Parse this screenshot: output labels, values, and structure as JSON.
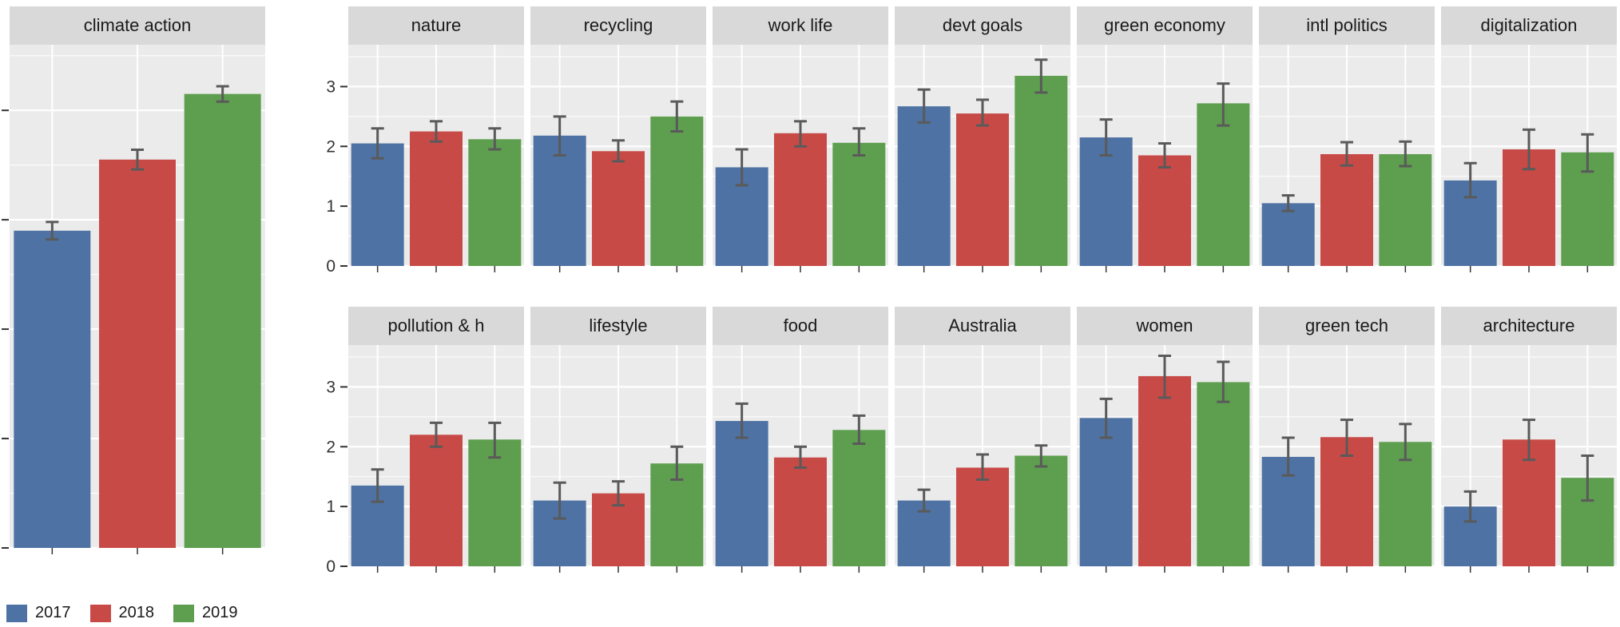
{
  "colors": {
    "2017": "#4e72a3",
    "2018": "#c84a47",
    "2019": "#5e9e4f",
    "panel_bg": "#ebebeb",
    "strip_bg": "#d9d9d9",
    "grid": "#ffffff",
    "error_bar": "#5a5a5a"
  },
  "legend": {
    "items": [
      "2017",
      "2018",
      "2019"
    ]
  },
  "chart_data": [
    {
      "type": "bar",
      "title": "climate action",
      "categories": [
        "2017",
        "2018",
        "2019"
      ],
      "values": [
        2.9,
        3.55,
        4.15
      ],
      "errors": [
        [
          2.82,
          2.98
        ],
        [
          3.46,
          3.64
        ],
        [
          4.08,
          4.22
        ]
      ],
      "ylim": [
        0,
        4.6
      ]
    },
    {
      "type": "bar",
      "grid": true,
      "y_ticks": [
        "0",
        "1",
        "2",
        "3"
      ],
      "ylim": [
        0,
        3.7
      ],
      "series_names": [
        "2017",
        "2018",
        "2019"
      ],
      "panels": [
        {
          "title": "nature",
          "values": [
            2.05,
            2.25,
            2.12
          ],
          "errors": [
            [
              1.8,
              2.3
            ],
            [
              2.08,
              2.42
            ],
            [
              1.95,
              2.3
            ]
          ]
        },
        {
          "title": "recycling",
          "values": [
            2.18,
            1.92,
            2.5
          ],
          "errors": [
            [
              1.85,
              2.5
            ],
            [
              1.75,
              2.1
            ],
            [
              2.25,
              2.75
            ]
          ]
        },
        {
          "title": "work life",
          "values": [
            1.65,
            2.22,
            2.06
          ],
          "errors": [
            [
              1.35,
              1.95
            ],
            [
              2.0,
              2.42
            ],
            [
              1.85,
              2.3
            ]
          ]
        },
        {
          "title": "devt goals",
          "values": [
            2.67,
            2.55,
            3.18
          ],
          "errors": [
            [
              2.4,
              2.95
            ],
            [
              2.35,
              2.78
            ],
            [
              2.9,
              3.45
            ]
          ]
        },
        {
          "title": "green economy",
          "values": [
            2.15,
            1.85,
            2.72
          ],
          "errors": [
            [
              1.85,
              2.45
            ],
            [
              1.65,
              2.05
            ],
            [
              2.35,
              3.05
            ]
          ]
        },
        {
          "title": "intl politics",
          "values": [
            1.05,
            1.87,
            1.87
          ],
          "errors": [
            [
              0.92,
              1.18
            ],
            [
              1.68,
              2.07
            ],
            [
              1.67,
              2.08
            ]
          ]
        },
        {
          "title": "digitalization",
          "values": [
            1.43,
            1.95,
            1.9
          ],
          "errors": [
            [
              1.15,
              1.72
            ],
            [
              1.62,
              2.28
            ],
            [
              1.58,
              2.2
            ]
          ]
        },
        {
          "title": "pollution & h",
          "values": [
            1.35,
            2.2,
            2.12
          ],
          "errors": [
            [
              1.08,
              1.62
            ],
            [
              2.0,
              2.4
            ],
            [
              1.82,
              2.4
            ]
          ]
        },
        {
          "title": "lifestyle",
          "values": [
            1.1,
            1.22,
            1.72
          ],
          "errors": [
            [
              0.8,
              1.4
            ],
            [
              1.02,
              1.42
            ],
            [
              1.45,
              2.0
            ]
          ]
        },
        {
          "title": "food",
          "values": [
            2.43,
            1.82,
            2.28
          ],
          "errors": [
            [
              2.15,
              2.72
            ],
            [
              1.65,
              2.0
            ],
            [
              2.05,
              2.52
            ]
          ]
        },
        {
          "title": "Australia",
          "values": [
            1.1,
            1.65,
            1.85
          ],
          "errors": [
            [
              0.92,
              1.28
            ],
            [
              1.45,
              1.87
            ],
            [
              1.67,
              2.02
            ]
          ]
        },
        {
          "title": "women",
          "values": [
            2.48,
            3.18,
            3.08
          ],
          "errors": [
            [
              2.15,
              2.8
            ],
            [
              2.82,
              3.52
            ],
            [
              2.75,
              3.42
            ]
          ]
        },
        {
          "title": "green tech",
          "values": [
            1.83,
            2.16,
            2.08
          ],
          "errors": [
            [
              1.52,
              2.15
            ],
            [
              1.85,
              2.45
            ],
            [
              1.78,
              2.38
            ]
          ]
        },
        {
          "title": "architecture",
          "values": [
            1.0,
            2.12,
            1.48
          ],
          "errors": [
            [
              0.75,
              1.25
            ],
            [
              1.78,
              2.45
            ],
            [
              1.1,
              1.85
            ]
          ]
        }
      ]
    }
  ]
}
